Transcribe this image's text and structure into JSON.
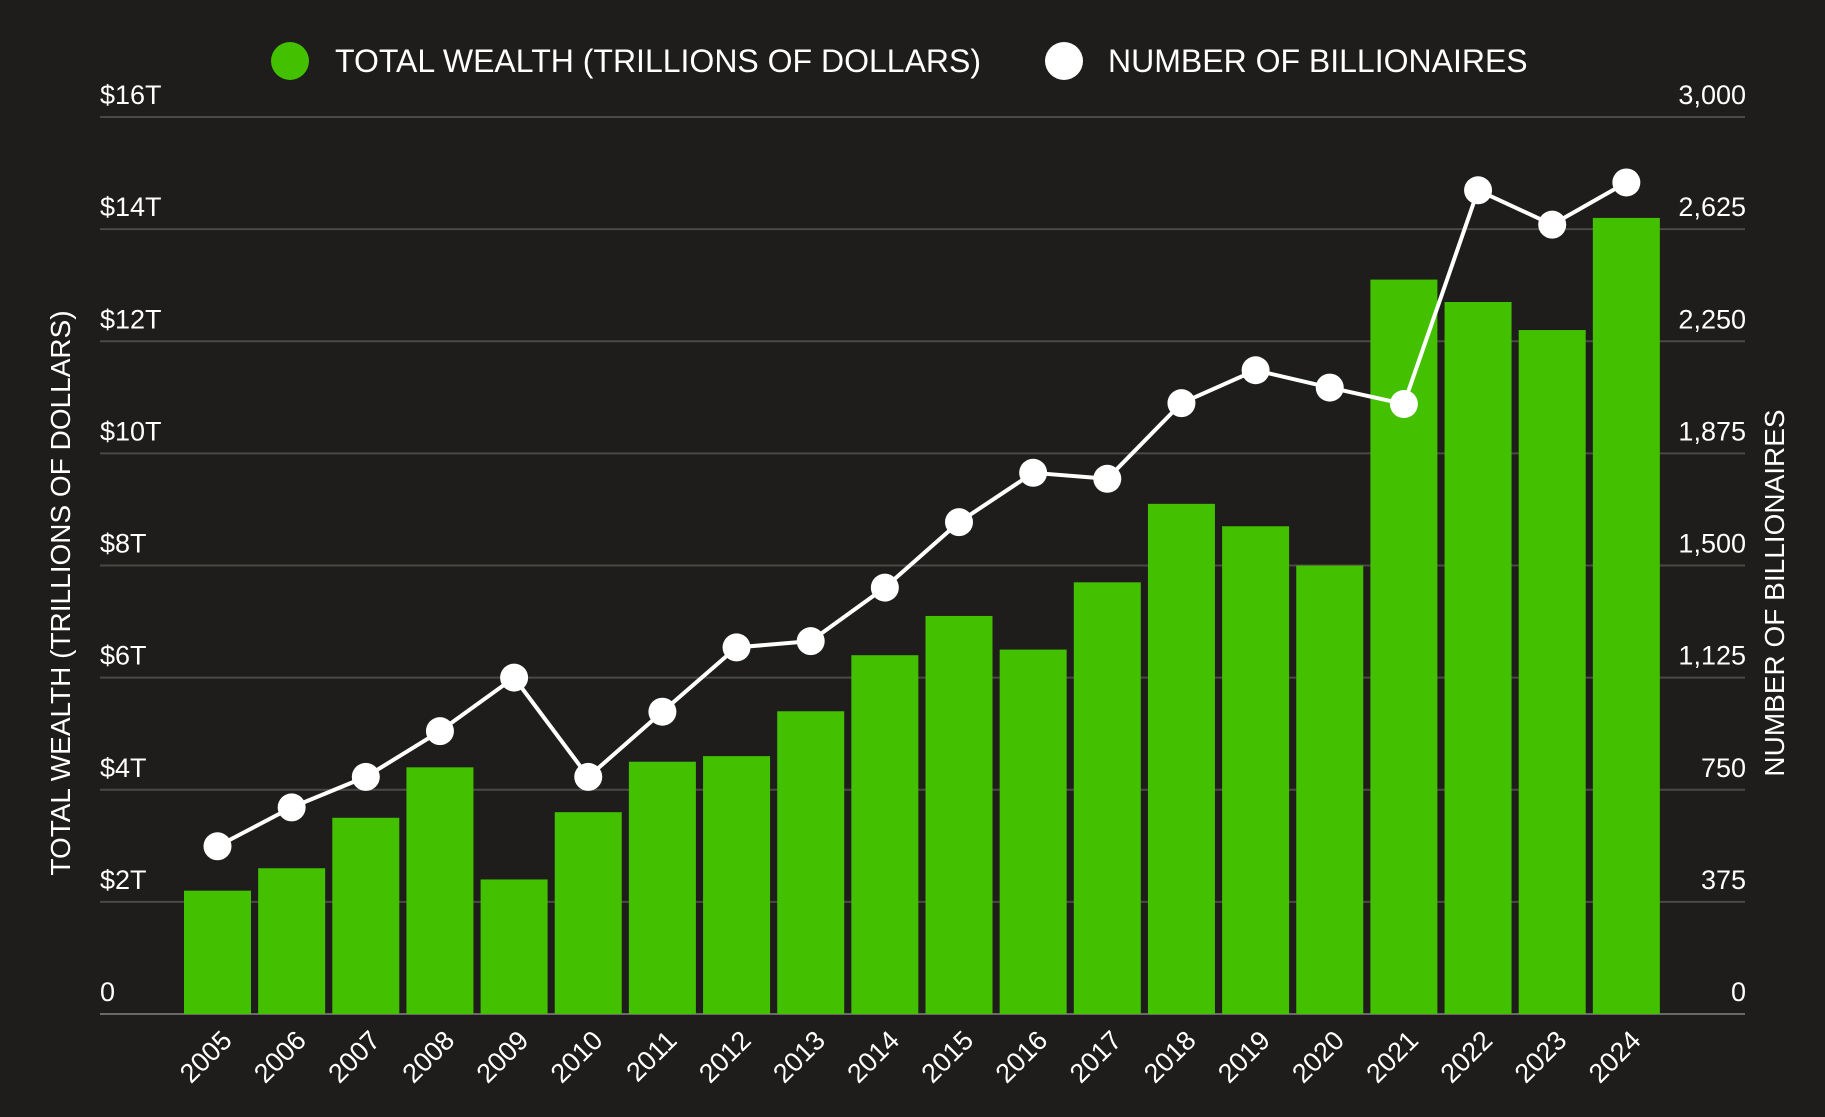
{
  "colors": {
    "background": "#1e1d1b",
    "bar": "#43c000",
    "line": "#ffffff",
    "grid": "#4a4946",
    "text": "#ffffff"
  },
  "legend": [
    {
      "label": "TOTAL WEALTH (TRILLIONS OF DOLLARS)",
      "color": "#43c000"
    },
    {
      "label": "NUMBER OF BILLIONAIRES",
      "color": "#ffffff"
    }
  ],
  "chart_data": {
    "type": "bar",
    "title": "",
    "legend_position": "top-center",
    "grid": true,
    "categories": [
      "2005",
      "2006",
      "2007",
      "2008",
      "2009",
      "2010",
      "2011",
      "2012",
      "2013",
      "2014",
      "2015",
      "2016",
      "2017",
      "2018",
      "2019",
      "2020",
      "2021",
      "2022",
      "2023",
      "2024"
    ],
    "series": [
      {
        "name": "TOTAL WEALTH (TRILLIONS OF DOLLARS)",
        "type": "bar",
        "axis": "left",
        "values": [
          2.2,
          2.6,
          3.5,
          4.4,
          2.4,
          3.6,
          4.5,
          4.6,
          5.4,
          6.4,
          7.1,
          6.5,
          7.7,
          9.1,
          8.7,
          8.0,
          13.1,
          12.7,
          12.2,
          14.2
        ]
      },
      {
        "name": "NUMBER OF BILLIONAIRES",
        "type": "line",
        "axis": "right",
        "values": [
          561,
          691,
          793,
          946,
          1125,
          793,
          1011,
          1226,
          1247,
          1426,
          1645,
          1810,
          1790,
          2043,
          2153,
          2095,
          2040,
          2755,
          2640,
          2781
        ]
      }
    ],
    "y_left": {
      "label": "TOTAL WEALTH (TRILLIONS OF DOLLARS)",
      "range": [
        0,
        16
      ],
      "ticks": [
        0,
        2,
        4,
        6,
        8,
        10,
        12,
        14,
        16
      ],
      "tick_labels": [
        "0",
        "$2T",
        "$4T",
        "$6T",
        "$8T",
        "$10T",
        "$12T",
        "$14T",
        "$16T"
      ]
    },
    "y_right": {
      "label": "NUMBER OF BILLIONAIRES",
      "range": [
        0,
        3000
      ],
      "ticks": [
        0,
        375,
        750,
        1125,
        1500,
        1875,
        2250,
        2625,
        3000
      ],
      "tick_labels": [
        "0",
        "375",
        "750",
        "1,125",
        "1,500",
        "1,875",
        "2,250",
        "2,625",
        "3,000"
      ]
    }
  }
}
